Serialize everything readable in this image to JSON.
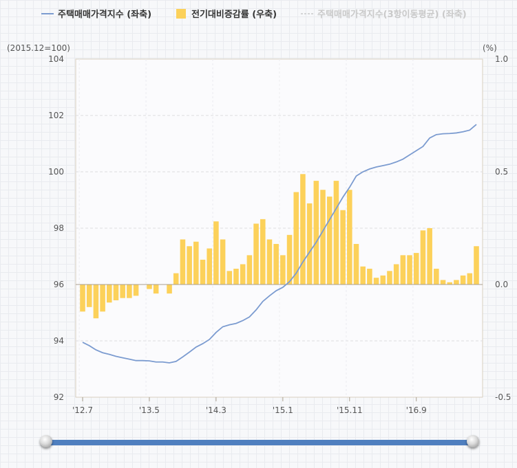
{
  "chart_data": {
    "type": "bar+line",
    "legend": [
      {
        "label": "주택매매가격지수 (좌축)",
        "kind": "line",
        "color": "#7b9bd0",
        "active": true
      },
      {
        "label": "전기대비증감률 (우축)",
        "kind": "bar",
        "color": "#fcd15a",
        "active": true
      },
      {
        "label": "주택매매가격지수(3항이동평균) (좌축)",
        "kind": "dashed-line",
        "color": "#c9c9c9",
        "active": false
      }
    ],
    "left_axis": {
      "unit": "(2015.12=100)",
      "min": 92,
      "max": 104,
      "ticks": [
        "104",
        "102",
        "100",
        "98",
        "96",
        "94",
        "92"
      ]
    },
    "right_axis": {
      "unit": "(%)",
      "min": -0.5,
      "max": 1.0,
      "ticks": [
        "1.0",
        "0.5",
        "0.0",
        "-0.5"
      ]
    },
    "x_tick_labels": [
      "'12.7",
      "'13.5",
      "'14.3",
      "'15.1",
      "'15.11",
      "'16.9"
    ],
    "period_start": "2012.7",
    "period_end": "2017.6",
    "index_values": [
      93.95,
      93.83,
      93.68,
      93.58,
      93.52,
      93.45,
      93.4,
      93.35,
      93.3,
      93.3,
      93.29,
      93.25,
      93.25,
      93.22,
      93.27,
      93.43,
      93.6,
      93.78,
      93.9,
      94.05,
      94.3,
      94.5,
      94.57,
      94.62,
      94.72,
      94.85,
      95.1,
      95.4,
      95.6,
      95.78,
      95.9,
      96.1,
      96.4,
      96.8,
      97.15,
      97.5,
      97.9,
      98.3,
      98.7,
      99.1,
      99.45,
      99.85,
      100.0,
      100.1,
      100.17,
      100.22,
      100.27,
      100.35,
      100.45,
      100.6,
      100.75,
      100.9,
      101.2,
      101.32,
      101.35,
      101.36,
      101.38,
      101.42,
      101.48,
      101.68
    ],
    "change_values": [
      -0.12,
      -0.1,
      -0.15,
      -0.12,
      -0.08,
      -0.07,
      -0.06,
      -0.06,
      -0.05,
      0.0,
      -0.02,
      -0.04,
      0.0,
      -0.04,
      0.05,
      0.2,
      0.17,
      0.19,
      0.11,
      0.16,
      0.28,
      0.2,
      0.06,
      0.07,
      0.09,
      0.13,
      0.27,
      0.29,
      0.2,
      0.18,
      0.13,
      0.22,
      0.41,
      0.49,
      0.36,
      0.46,
      0.42,
      0.39,
      0.46,
      0.33,
      0.42,
      0.18,
      0.08,
      0.07,
      0.03,
      0.04,
      0.06,
      0.09,
      0.13,
      0.13,
      0.14,
      0.24,
      0.25,
      0.07,
      0.02,
      0.01,
      0.02,
      0.04,
      0.05,
      0.17
    ]
  },
  "slider": {
    "range_start": 0,
    "range_end": 1
  }
}
